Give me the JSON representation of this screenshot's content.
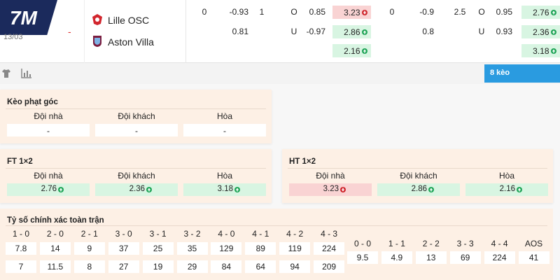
{
  "header": {
    "logo": "7M",
    "date": "13/03",
    "score": "-",
    "home": "Lille OSC",
    "away": "Aston Villa",
    "button": "8 kèo"
  },
  "top": {
    "rows": [
      [
        0,
        -0.93,
        1,
        "O",
        0.85,
        {
          "value": 3.23,
          "trend": "down"
        },
        0,
        -0.9,
        2.5,
        "O",
        0.95,
        {
          "value": 2.76,
          "trend": "up"
        }
      ],
      [
        null,
        0.81,
        null,
        "U",
        -0.97,
        {
          "value": 2.86,
          "trend": "up"
        },
        null,
        0.8,
        null,
        "U",
        0.93,
        {
          "value": 2.36,
          "trend": "up"
        }
      ],
      [
        null,
        null,
        null,
        null,
        null,
        {
          "value": 2.16,
          "trend": "up"
        },
        null,
        null,
        null,
        null,
        null,
        {
          "value": 3.18,
          "trend": "up"
        }
      ]
    ]
  },
  "panels": [
    {
      "title": "Kèo phạt góc",
      "headers": [
        "Đội nhà",
        "Đội khách",
        "Hòa"
      ],
      "values": [
        "-",
        "-",
        "-"
      ]
    },
    {
      "title": "FT 1×2",
      "headers": [
        "Đội nhà",
        "Đội khách",
        "Hòa"
      ],
      "values": [
        {
          "value": 2.76,
          "trend": "up"
        },
        {
          "value": 2.36,
          "trend": "up"
        },
        {
          "value": 3.18,
          "trend": "up"
        }
      ]
    },
    {
      "title": "HT 1×2",
      "headers": [
        "Đội nhà",
        "Đội khách",
        "Hòa"
      ],
      "values": [
        {
          "value": 3.23,
          "trend": "down"
        },
        {
          "value": 2.86,
          "trend": "up"
        },
        {
          "value": 2.16,
          "trend": "up"
        }
      ]
    }
  ],
  "correct_score": {
    "title": "Tỷ số chính xác toàn trận",
    "groups": [
      {
        "labels": [
          "1 - 0",
          "2 - 0",
          "2 - 1",
          "3 - 0",
          "3 - 1",
          "3 - 2",
          "4 - 0",
          "4 - 1",
          "4 - 2",
          "4 - 3"
        ],
        "rows": [
          [
            7.8,
            14,
            9,
            37,
            25,
            35,
            129,
            89,
            119,
            224
          ],
          [
            7,
            11.5,
            8,
            27,
            19,
            29,
            84,
            64,
            94,
            209
          ]
        ]
      },
      {
        "labels": [
          "0 - 0",
          "1 - 1",
          "2 - 2",
          "3 - 3",
          "4 - 4",
          "AOS"
        ],
        "rows": [
          [
            9.5,
            4.9,
            13,
            69,
            224,
            41
          ]
        ]
      }
    ]
  }
}
